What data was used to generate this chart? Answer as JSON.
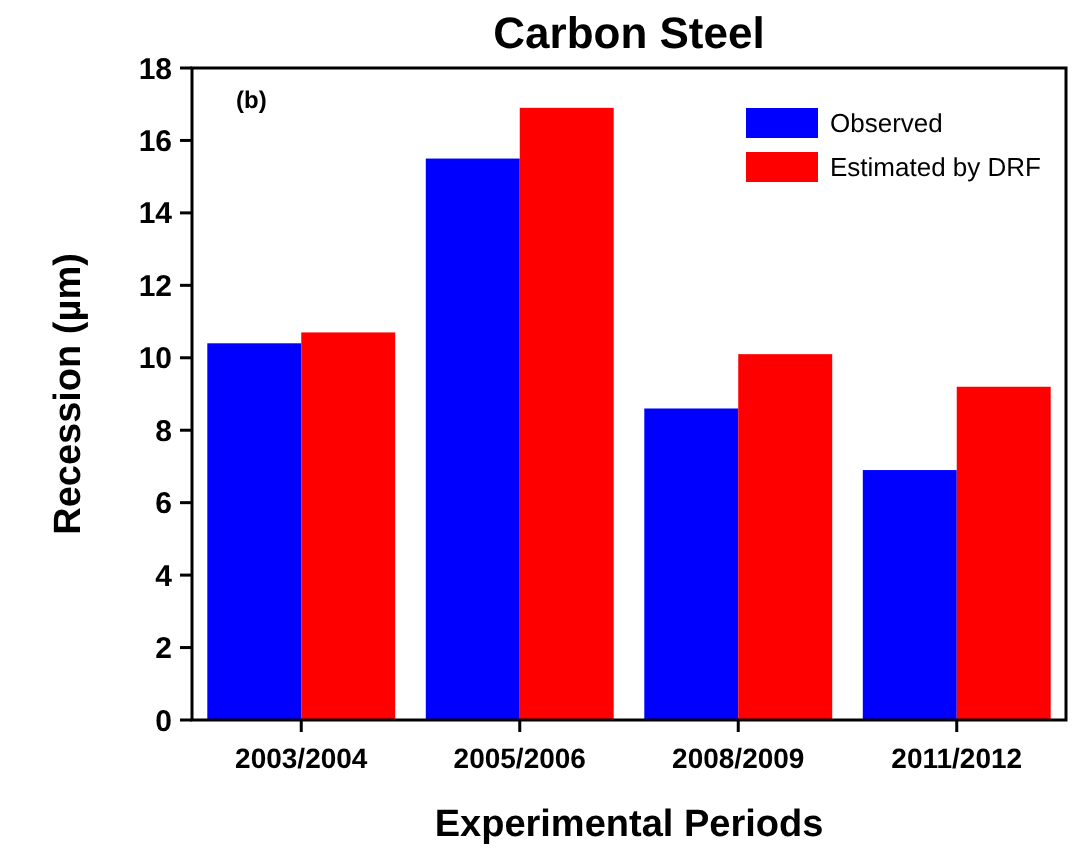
{
  "chart_data": {
    "type": "bar",
    "title": "Carbon Steel",
    "xlabel": "Experimental Periods",
    "ylabel": "Recession (µm)",
    "annotations": [
      "(b)"
    ],
    "categories": [
      "2003/2004",
      "2005/2006",
      "2008/2009",
      "2011/2012"
    ],
    "series": [
      {
        "name": "Observed",
        "color": "#0000ff",
        "values": [
          10.4,
          15.5,
          8.6,
          6.9
        ]
      },
      {
        "name": "Estimated by DRF",
        "color": "#ff0000",
        "values": [
          10.7,
          16.9,
          10.1,
          9.2
        ]
      }
    ],
    "ylim": [
      0,
      18
    ],
    "yticks": [
      0,
      2,
      4,
      6,
      8,
      10,
      12,
      14,
      16,
      18
    ],
    "grid": false,
    "legend": "top right"
  }
}
